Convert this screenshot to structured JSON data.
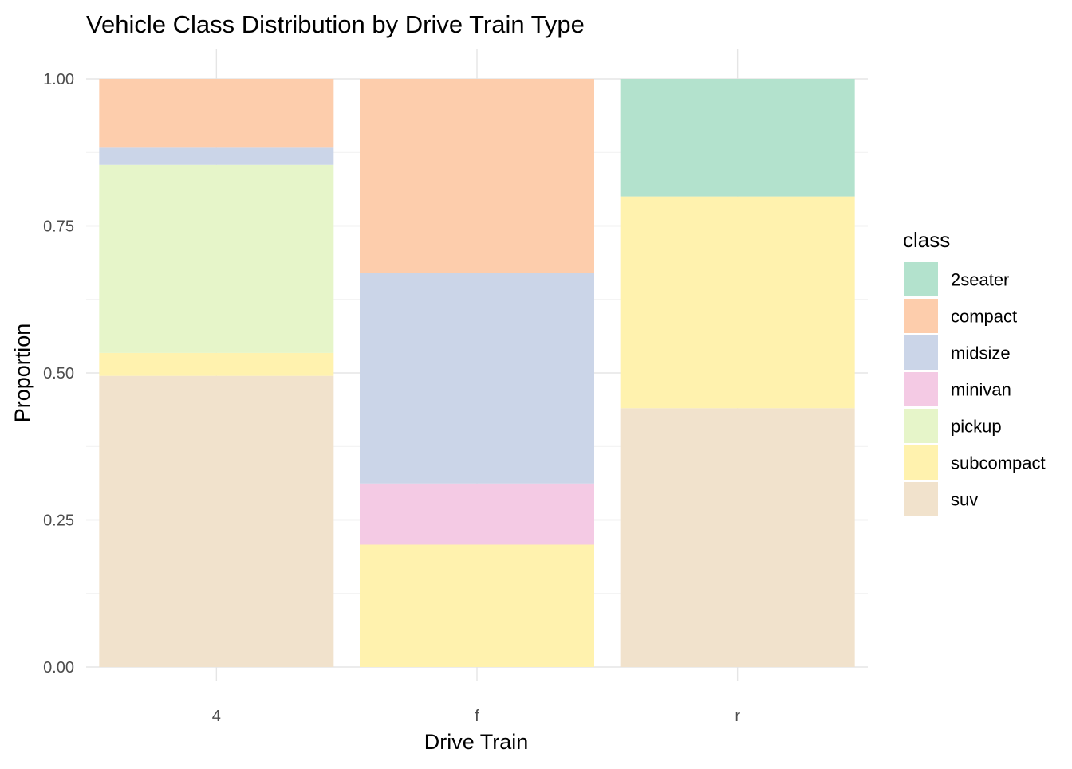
{
  "chart_data": {
    "type": "bar",
    "stacked": "fill",
    "title": "Vehicle Class Distribution by Drive Train Type",
    "xlabel": "Drive Train",
    "ylabel": "Proportion",
    "ylim": [
      0,
      1
    ],
    "yticks": [
      "0.00",
      "0.25",
      "0.50",
      "0.75",
      "1.00"
    ],
    "categories": [
      "4",
      "f",
      "r"
    ],
    "grid": true,
    "legend": {
      "title": "class",
      "placement": "right"
    },
    "series": [
      {
        "name": "2seater",
        "color": "#B3E2CD",
        "values": [
          0.0,
          0.0,
          0.2
        ]
      },
      {
        "name": "compact",
        "color": "#FDCDAC",
        "values": [
          0.117,
          0.33,
          0.0
        ]
      },
      {
        "name": "midsize",
        "color": "#CBD5E8",
        "values": [
          0.029,
          0.358,
          0.0
        ]
      },
      {
        "name": "minivan",
        "color": "#F4CAE4",
        "values": [
          0.0,
          0.104,
          0.0
        ]
      },
      {
        "name": "pickup",
        "color": "#E6F5C9",
        "values": [
          0.32,
          0.0,
          0.0
        ]
      },
      {
        "name": "subcompact",
        "color": "#FFF2AE",
        "values": [
          0.039,
          0.208,
          0.36
        ]
      },
      {
        "name": "suv",
        "color": "#F1E2CC",
        "values": [
          0.495,
          0.0,
          0.44
        ]
      }
    ]
  }
}
